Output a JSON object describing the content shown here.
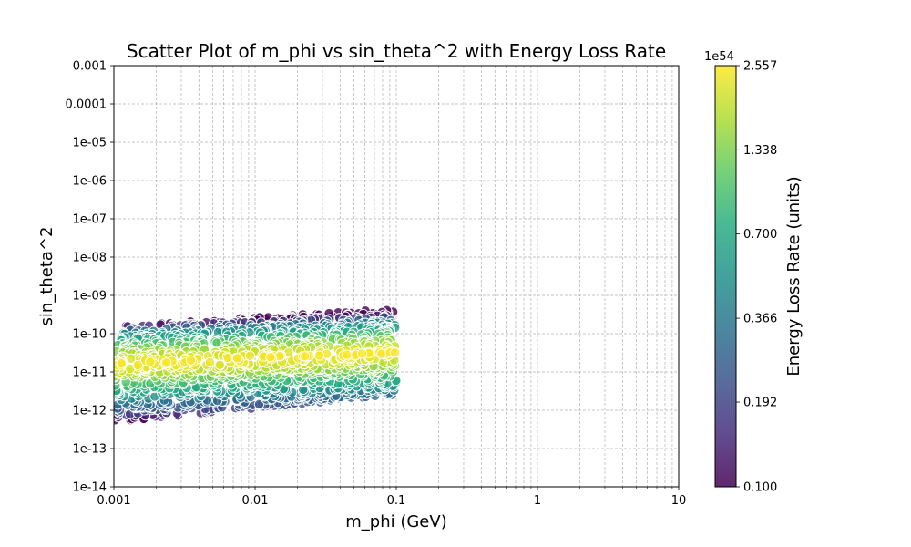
{
  "chart_data": {
    "type": "scatter",
    "title": "Scatter Plot of m_phi vs sin_theta^2 with Energy Loss Rate",
    "xlabel": "m_phi (GeV)",
    "ylabel": "sin_theta^2",
    "xscale": "log",
    "yscale": "log",
    "xlim": [
      0.001,
      10
    ],
    "ylim": [
      1e-14,
      0.001
    ],
    "x_ticks": [
      "0.001",
      "0.01",
      "0.1",
      "1",
      "10"
    ],
    "y_ticks": [
      "1e-14",
      "1e-13",
      "1e-12",
      "1e-11",
      "1e-10",
      "1e-09",
      "1e-08",
      "1e-07",
      "1e-06",
      "1e-05",
      "0.0001",
      "0.001"
    ],
    "grid": true,
    "colorbar": {
      "label": "Energy Loss Rate (units)",
      "exponent": "1e54",
      "scale": "log",
      "colormap": "viridis",
      "range": [
        0.1,
        2.557
      ],
      "ticks": [
        "0.100",
        "0.192",
        "0.366",
        "0.700",
        "1.338",
        "2.557"
      ]
    },
    "point_style": {
      "edge_color": "#ffffff",
      "alpha": 0.8
    },
    "x_range": [
      0.001,
      0.1
    ],
    "band_centers": [
      {
        "x": 0.001,
        "sin_theta2": 1.6e-11
      },
      {
        "x": 0.1,
        "sin_theta2": 3.2e-11
      }
    ],
    "color_levels": [
      {
        "log_offset_from_center": -1.45,
        "energy_loss_rate": 0.1
      },
      {
        "log_offset_from_center": -1.0,
        "energy_loss_rate": 0.35
      },
      {
        "log_offset_from_center": -0.5,
        "energy_loss_rate": 1.0
      },
      {
        "log_offset_from_center": 0.0,
        "energy_loss_rate": 2.557
      },
      {
        "log_offset_from_center": 0.3,
        "energy_loss_rate": 1.5
      },
      {
        "log_offset_from_center": 0.6,
        "energy_loss_rate": 0.7
      },
      {
        "log_offset_from_center": 1.0,
        "energy_loss_rate": 0.1
      }
    ],
    "band_edges": [
      {
        "x": 0.001,
        "lower": 5e-13,
        "upper": 1.6e-10
      },
      {
        "x": 0.1,
        "lower": 2.5e-12,
        "upper": 4.5e-10
      }
    ]
  }
}
